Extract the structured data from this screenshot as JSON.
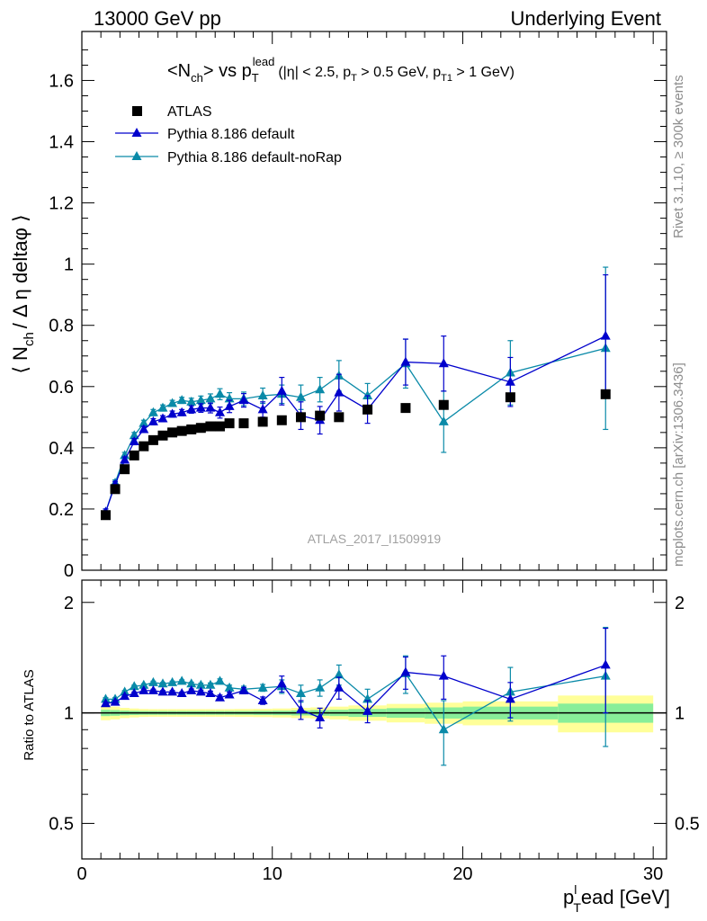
{
  "header": {
    "left": "13000 GeV pp",
    "right": "Underlying Event"
  },
  "side_labels": {
    "rivet": "Rivet 3.1.10, ≥ 300k events",
    "mcplots": "mcplots.cern.ch [arXiv:1306.3436]"
  },
  "colors": {
    "atlas": "#000000",
    "default": "#0000cc",
    "norap": "#0a8aa8",
    "band_outer": "#ffff99",
    "band_inner": "#88ee99",
    "watermark": "#a0a0a0"
  },
  "chart_data": [
    {
      "type": "scatter",
      "title_parts": {
        "main": "<N",
        "ch": "ch",
        "vs": "> vs p",
        "T": "T",
        "lead": "lead",
        "cuts": "(|η| < 2.5, p",
        "cuts_T": "T",
        "cuts_mid": " > 0.5 GeV, p",
        "cuts_T1": "T1",
        "cuts_end": " > 1 GeV)"
      },
      "ylabel": "⟨ N_ch / Δη deltaφ ⟩",
      "ylabel_parts": {
        "l1": "⟨ N",
        "sub": "ch",
        "l2": "/ Δ η deltaφ ⟩"
      },
      "watermark": "ATLAS_2017_I1509919",
      "xlim": [
        0,
        30.7
      ],
      "ylim": [
        0,
        1.76
      ],
      "xticks": [
        0,
        10,
        20,
        30
      ],
      "yticks": [
        0,
        0.2,
        0.4,
        0.6,
        0.8,
        1,
        1.2,
        1.4,
        1.6
      ],
      "ytick_labels": [
        "0",
        "0.2",
        "0.4",
        "0.6",
        "0.8",
        "1",
        "1.2",
        "1.4",
        "1.6"
      ],
      "legend": {
        "position": "top-left",
        "entries": [
          "ATLAS",
          "Pythia 8.186 default",
          "Pythia 8.186 default-noRap"
        ]
      },
      "series": [
        {
          "name": "ATLAS",
          "marker": "square",
          "x": [
            1.25,
            1.75,
            2.25,
            2.75,
            3.25,
            3.75,
            4.25,
            4.75,
            5.25,
            5.75,
            6.25,
            6.75,
            7.25,
            7.75,
            8.5,
            9.5,
            10.5,
            11.5,
            12.5,
            13.5,
            15,
            17,
            19,
            22.5,
            27.5
          ],
          "y": [
            0.18,
            0.265,
            0.33,
            0.375,
            0.405,
            0.425,
            0.44,
            0.45,
            0.455,
            0.46,
            0.465,
            0.47,
            0.47,
            0.48,
            0.48,
            0.485,
            0.49,
            0.5,
            0.505,
            0.5,
            0.525,
            0.53,
            0.54,
            0.565,
            0.575
          ]
        },
        {
          "name": "Pythia 8.186 default",
          "marker": "triangle",
          "x": [
            1.25,
            1.75,
            2.25,
            2.75,
            3.25,
            3.75,
            4.25,
            4.75,
            5.25,
            5.75,
            6.25,
            6.75,
            7.25,
            7.75,
            8.5,
            9.5,
            10.5,
            11.5,
            12.5,
            13.5,
            15,
            17,
            19,
            22.5,
            27.5
          ],
          "y": [
            0.19,
            0.28,
            0.36,
            0.42,
            0.46,
            0.485,
            0.495,
            0.51,
            0.515,
            0.525,
            0.53,
            0.53,
            0.515,
            0.535,
            0.555,
            0.525,
            0.585,
            0.505,
            0.49,
            0.58,
            0.525,
            0.68,
            0.675,
            0.615,
            0.765
          ],
          "err": [
            0.01,
            0.01,
            0.01,
            0.01,
            0.01,
            0.01,
            0.01,
            0.01,
            0.01,
            0.012,
            0.014,
            0.016,
            0.018,
            0.02,
            0.022,
            0.025,
            0.045,
            0.045,
            0.045,
            0.06,
            0.045,
            0.075,
            0.09,
            0.08,
            0.2
          ]
        },
        {
          "name": "Pythia 8.186 default-noRap",
          "marker": "triangle",
          "x": [
            1.25,
            1.75,
            2.25,
            2.75,
            3.25,
            3.75,
            4.25,
            4.75,
            5.25,
            5.75,
            6.25,
            6.75,
            7.25,
            7.75,
            8.5,
            9.5,
            10.5,
            11.5,
            12.5,
            13.5,
            15,
            17,
            19,
            22.5,
            27.5
          ],
          "y": [
            0.19,
            0.285,
            0.375,
            0.44,
            0.48,
            0.515,
            0.53,
            0.545,
            0.555,
            0.55,
            0.555,
            0.56,
            0.575,
            0.56,
            0.56,
            0.57,
            0.575,
            0.565,
            0.59,
            0.635,
            0.57,
            0.675,
            0.485,
            0.645,
            0.725
          ],
          "err": [
            0.01,
            0.01,
            0.01,
            0.01,
            0.01,
            0.01,
            0.01,
            0.01,
            0.01,
            0.012,
            0.014,
            0.016,
            0.018,
            0.02,
            0.022,
            0.025,
            0.03,
            0.04,
            0.04,
            0.05,
            0.04,
            0.08,
            0.1,
            0.105,
            0.265
          ]
        }
      ]
    },
    {
      "type": "scatter",
      "ylabel": "Ratio to ATLAS",
      "xlabel": "p_T^lead [GeV]",
      "xlabel_parts": {
        "p": "p",
        "sup": "l",
        "sub": "T",
        "rest": "ead [GeV]"
      },
      "xlim": [
        0,
        30.7
      ],
      "ylim": [
        0.4,
        2.3
      ],
      "log_y": true,
      "xticks": [
        0,
        10,
        20,
        30
      ],
      "xtick_labels": [
        "0",
        "10",
        "20",
        "30"
      ],
      "yticks": [
        0.5,
        1,
        2
      ],
      "ytick_labels": [
        "0.5",
        "1",
        "2"
      ],
      "band": {
        "x_edges": [
          1,
          1.5,
          2,
          2.5,
          3,
          3.5,
          4,
          4.5,
          5,
          5.5,
          6,
          6.5,
          7,
          7.5,
          8,
          9,
          10,
          11,
          12,
          13,
          14,
          16,
          18,
          20,
          25,
          30
        ],
        "inner": [
          0.02,
          0.018,
          0.015,
          0.013,
          0.012,
          0.012,
          0.012,
          0.012,
          0.012,
          0.012,
          0.012,
          0.012,
          0.012,
          0.012,
          0.012,
          0.013,
          0.014,
          0.016,
          0.018,
          0.02,
          0.025,
          0.03,
          0.035,
          0.04,
          0.06
        ],
        "outer": [
          0.045,
          0.04,
          0.032,
          0.028,
          0.025,
          0.024,
          0.024,
          0.024,
          0.024,
          0.024,
          0.024,
          0.024,
          0.024,
          0.024,
          0.025,
          0.026,
          0.028,
          0.032,
          0.035,
          0.04,
          0.048,
          0.058,
          0.066,
          0.075,
          0.115
        ]
      },
      "series": [
        {
          "name": "Pythia 8.186 default",
          "x": [
            1.25,
            1.75,
            2.25,
            2.75,
            3.25,
            3.75,
            4.25,
            4.75,
            5.25,
            5.75,
            6.25,
            6.75,
            7.25,
            7.75,
            8.5,
            9.5,
            10.5,
            11.5,
            12.5,
            13.5,
            15,
            17,
            19,
            22.5,
            27.5
          ],
          "y": [
            1.06,
            1.07,
            1.11,
            1.13,
            1.15,
            1.15,
            1.14,
            1.14,
            1.13,
            1.15,
            1.14,
            1.13,
            1.1,
            1.12,
            1.15,
            1.08,
            1.2,
            1.02,
            0.97,
            1.17,
            1.01,
            1.29,
            1.26,
            1.09,
            1.35
          ],
          "err": [
            0.01,
            0.01,
            0.01,
            0.01,
            0.01,
            0.01,
            0.01,
            0.01,
            0.01,
            0.012,
            0.014,
            0.016,
            0.018,
            0.02,
            0.022,
            0.025,
            0.06,
            0.06,
            0.06,
            0.08,
            0.07,
            0.13,
            0.17,
            0.12,
            0.35
          ]
        },
        {
          "name": "Pythia 8.186 default-noRap",
          "x": [
            1.25,
            1.75,
            2.25,
            2.75,
            3.25,
            3.75,
            4.25,
            4.75,
            5.25,
            5.75,
            6.25,
            6.75,
            7.25,
            7.75,
            8.5,
            9.5,
            10.5,
            11.5,
            12.5,
            13.5,
            15,
            17,
            19,
            22.5,
            27.5
          ],
          "y": [
            1.09,
            1.09,
            1.14,
            1.18,
            1.19,
            1.21,
            1.2,
            1.21,
            1.22,
            1.2,
            1.19,
            1.19,
            1.22,
            1.17,
            1.16,
            1.17,
            1.18,
            1.13,
            1.17,
            1.27,
            1.09,
            1.28,
            0.9,
            1.14,
            1.26
          ],
          "err": [
            0.01,
            0.01,
            0.01,
            0.01,
            0.01,
            0.01,
            0.01,
            0.01,
            0.01,
            0.012,
            0.014,
            0.016,
            0.018,
            0.02,
            0.022,
            0.025,
            0.05,
            0.06,
            0.06,
            0.08,
            0.07,
            0.15,
            0.18,
            0.19,
            0.45
          ]
        }
      ]
    }
  ]
}
